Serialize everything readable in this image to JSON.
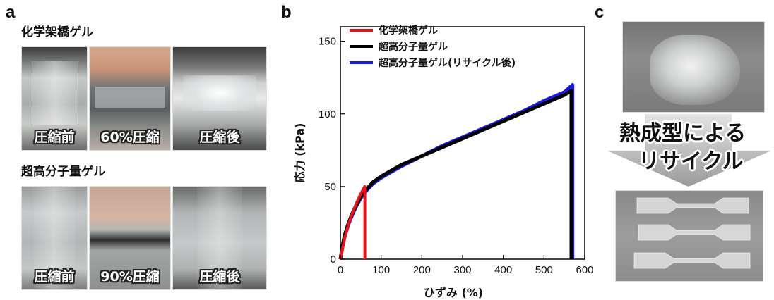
{
  "panels": {
    "a": "a",
    "b": "b",
    "c": "c"
  },
  "panel_a": {
    "row1": {
      "title": "化学架橋ゲル",
      "captions": [
        "圧縮前",
        "60%圧縮",
        "圧縮後"
      ]
    },
    "row2": {
      "title": "超高分子量ゲル",
      "captions": [
        "圧縮前",
        "90%圧縮",
        "圧縮後"
      ]
    }
  },
  "panel_c": {
    "line1": "熱成型による",
    "line2": "リサイクル"
  },
  "colors": {
    "red": "#e8141b",
    "black": "#000000",
    "blue": "#1a1adc"
  },
  "chart_data": {
    "type": "line",
    "xlabel": "ひずみ (%)",
    "ylabel": "応力 (kPa)",
    "xlim": [
      0,
      600
    ],
    "ylim": [
      0,
      160
    ],
    "xticks": [
      "0",
      "100",
      "200",
      "300",
      "400",
      "500",
      "600"
    ],
    "yticks": [
      "0",
      "50",
      "100",
      "150"
    ],
    "legend_position": "top-left",
    "series": [
      {
        "name": "化学架橋ゲル",
        "color": "#e8141b",
        "x": [
          0,
          10,
          20,
          30,
          40,
          50,
          58,
          60,
          60
        ],
        "y": [
          0,
          14,
          24,
          32,
          39,
          45,
          49,
          50,
          0
        ]
      },
      {
        "name": "超高分子量ゲル",
        "color": "#000000",
        "x": [
          0,
          5,
          10,
          20,
          30,
          40,
          50,
          60,
          70,
          80,
          100,
          150,
          200,
          250,
          300,
          350,
          400,
          450,
          500,
          550,
          567,
          567
        ],
        "y": [
          0,
          9,
          16,
          25,
          32,
          38,
          43,
          47,
          50,
          53,
          57,
          65,
          71,
          77,
          83,
          89,
          95,
          101,
          107,
          113,
          116,
          0
        ]
      },
      {
        "name": "超高分子量ゲル(リサイクル後)",
        "color": "#1a1adc",
        "x": [
          0,
          5,
          10,
          20,
          30,
          40,
          50,
          60,
          70,
          80,
          100,
          150,
          200,
          250,
          300,
          350,
          400,
          450,
          500,
          550,
          570,
          570
        ],
        "y": [
          0,
          8,
          15,
          24,
          31,
          37,
          42,
          46,
          49,
          52,
          56,
          64,
          71,
          78,
          84,
          90,
          96,
          102,
          109,
          115,
          120,
          0
        ]
      }
    ]
  }
}
